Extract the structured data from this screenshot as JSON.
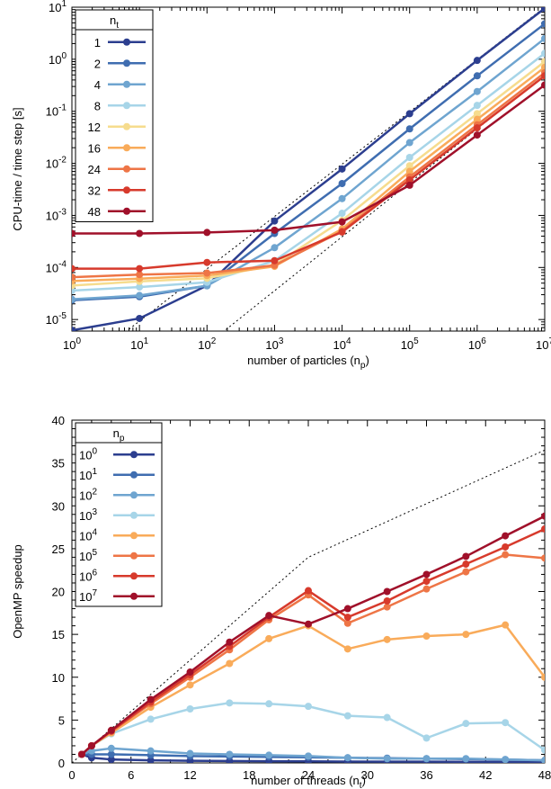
{
  "chart_data": [
    {
      "type": "line",
      "xscale": "log",
      "yscale": "log",
      "xlabel": "number of particles (n_p)",
      "ylabel": "CPU-time / time step [s]",
      "xlim": [
        1,
        10000000
      ],
      "ylim": [
        6e-06,
        10
      ],
      "xticks": [
        1,
        10,
        100,
        1000,
        10000,
        100000,
        1000000,
        10000000
      ],
      "xtick_labels": [
        [
          "10",
          "0"
        ],
        [
          "10",
          "1"
        ],
        [
          "10",
          "2"
        ],
        [
          "10",
          "3"
        ],
        [
          "10",
          "4"
        ],
        [
          "10",
          "5"
        ],
        [
          "10",
          "6"
        ],
        [
          "10",
          "7"
        ]
      ],
      "yticks": [
        1e-05,
        0.0001,
        0.001,
        0.01,
        0.1,
        1,
        10
      ],
      "ytick_labels": [
        [
          "10",
          "-5"
        ],
        [
          "10",
          "-4"
        ],
        [
          "10",
          "-3"
        ],
        [
          "10",
          "-2"
        ],
        [
          "10",
          "-1"
        ],
        [
          "10",
          "0"
        ],
        [
          "10",
          "1"
        ]
      ],
      "legend_title": "n_t",
      "legend_position": "top-left",
      "x": [
        1,
        10,
        100,
        1000,
        10000,
        100000,
        1000000,
        10000000
      ],
      "series": [
        {
          "name": "1",
          "color": "#2c3e8f",
          "values": [
            6.2e-06,
            1.05e-05,
            4.5e-05,
            0.00078,
            0.0078,
            0.09,
            0.95,
            9.5
          ]
        },
        {
          "name": "2",
          "color": "#3f6db0",
          "values": [
            2.35e-05,
            2.75e-05,
            4.45e-05,
            0.00045,
            0.0041,
            0.046,
            0.48,
            4.8
          ]
        },
        {
          "name": "4",
          "color": "#6fa5d0",
          "values": [
            2.45e-05,
            2.9e-05,
            4.45e-05,
            0.00024,
            0.0021,
            0.025,
            0.24,
            2.5
          ]
        },
        {
          "name": "8",
          "color": "#a7d5e8",
          "values": [
            3.6e-05,
            4.2e-05,
            5.2e-05,
            0.000135,
            0.0011,
            0.013,
            0.13,
            1.3
          ]
        },
        {
          "name": "12",
          "color": "#f6dc8e",
          "values": [
            4.5e-05,
            5.4e-05,
            6.2e-05,
            0.000112,
            0.0008,
            0.009,
            0.09,
            0.9
          ]
        },
        {
          "name": "16",
          "color": "#f9ab5a",
          "values": [
            5.5e-05,
            6.1e-05,
            7e-05,
            0.000105,
            0.00055,
            0.007,
            0.07,
            0.7
          ]
        },
        {
          "name": "24",
          "color": "#ee7546",
          "values": [
            6.5e-05,
            7.3e-05,
            7.8e-05,
            0.00011,
            0.0005,
            0.0055,
            0.055,
            0.55
          ]
        },
        {
          "name": "32",
          "color": "#d73a2c",
          "values": [
            9.5e-05,
            9.5e-05,
            0.000125,
            0.000135,
            0.00048,
            0.0048,
            0.048,
            0.48
          ]
        },
        {
          "name": "48",
          "color": "#a0102a",
          "values": [
            0.00045,
            0.00045,
            0.00047,
            0.00052,
            0.00075,
            0.0038,
            0.035,
            0.32
          ]
        }
      ],
      "reference_lines": [
        {
          "style": "dotted",
          "x": [
            7,
            10000000
          ],
          "y": [
            6.5e-06,
            10
          ]
        },
        {
          "style": "dotted",
          "x": [
            150,
            10000000
          ],
          "y": [
            5e-06,
            0.5
          ]
        }
      ]
    },
    {
      "type": "line",
      "xlabel": "number of threads (n_t)",
      "ylabel": "OpenMP speedup",
      "xlim": [
        0,
        48
      ],
      "ylim": [
        0,
        40
      ],
      "xticks": [
        0,
        6,
        12,
        18,
        24,
        30,
        36,
        42,
        48
      ],
      "yticks": [
        0,
        5,
        10,
        15,
        20,
        25,
        30,
        35,
        40
      ],
      "legend_title": "n_p",
      "legend_position": "top-left",
      "x": [
        1,
        2,
        4,
        8,
        12,
        16,
        20,
        24,
        28,
        32,
        36,
        40,
        44,
        48
      ],
      "series": [
        {
          "name": "10^0",
          "color": "#2c3e8f",
          "values": [
            1.0,
            0.6,
            0.4,
            0.3,
            0.25,
            0.22,
            0.2,
            0.18,
            0.16,
            0.15,
            0.14,
            0.13,
            0.12,
            0.1
          ]
        },
        {
          "name": "10^1",
          "color": "#3f6db0",
          "values": [
            1.0,
            1.0,
            1.0,
            0.9,
            0.8,
            0.75,
            0.7,
            0.65,
            0.6,
            0.55,
            0.5,
            0.45,
            0.4,
            0.3
          ]
        },
        {
          "name": "10^2",
          "color": "#6fa5d0",
          "values": [
            1.0,
            1.4,
            1.7,
            1.4,
            1.1,
            1.0,
            0.9,
            0.8,
            0.6,
            0.5,
            0.5,
            0.5,
            0.4,
            0.3
          ]
        },
        {
          "name": "10^3",
          "color": "#a7d5e8",
          "values": [
            1.0,
            2.0,
            3.4,
            5.1,
            6.3,
            7.0,
            6.9,
            6.6,
            5.5,
            5.3,
            2.9,
            4.6,
            4.7,
            1.5
          ]
        },
        {
          "name": "10^4",
          "color": "#f9ab5a",
          "values": [
            1.0,
            2.0,
            3.5,
            6.5,
            9.1,
            11.6,
            14.5,
            16.0,
            13.3,
            14.4,
            14.8,
            15.0,
            16.1,
            10.0
          ]
        },
        {
          "name": "10^5",
          "color": "#ee7546",
          "values": [
            1.0,
            2.0,
            3.7,
            6.9,
            10.0,
            13.2,
            16.7,
            19.6,
            16.3,
            18.2,
            20.3,
            22.3,
            24.3,
            23.9
          ]
        },
        {
          "name": "10^6",
          "color": "#d73a2c",
          "values": [
            1.0,
            2.0,
            3.7,
            7.1,
            10.3,
            13.6,
            17.0,
            20.1,
            17.0,
            18.9,
            21.2,
            23.2,
            25.2,
            27.3
          ]
        },
        {
          "name": "10^7",
          "color": "#a0102a",
          "values": [
            1.0,
            2.0,
            3.8,
            7.4,
            10.6,
            14.1,
            17.2,
            16.2,
            18.0,
            20.0,
            22.0,
            24.1,
            26.5,
            28.8
          ]
        }
      ],
      "reference_lines": [
        {
          "style": "dotted",
          "x": [
            0,
            24,
            48
          ],
          "y": [
            0,
            24,
            36.5
          ]
        }
      ]
    }
  ]
}
